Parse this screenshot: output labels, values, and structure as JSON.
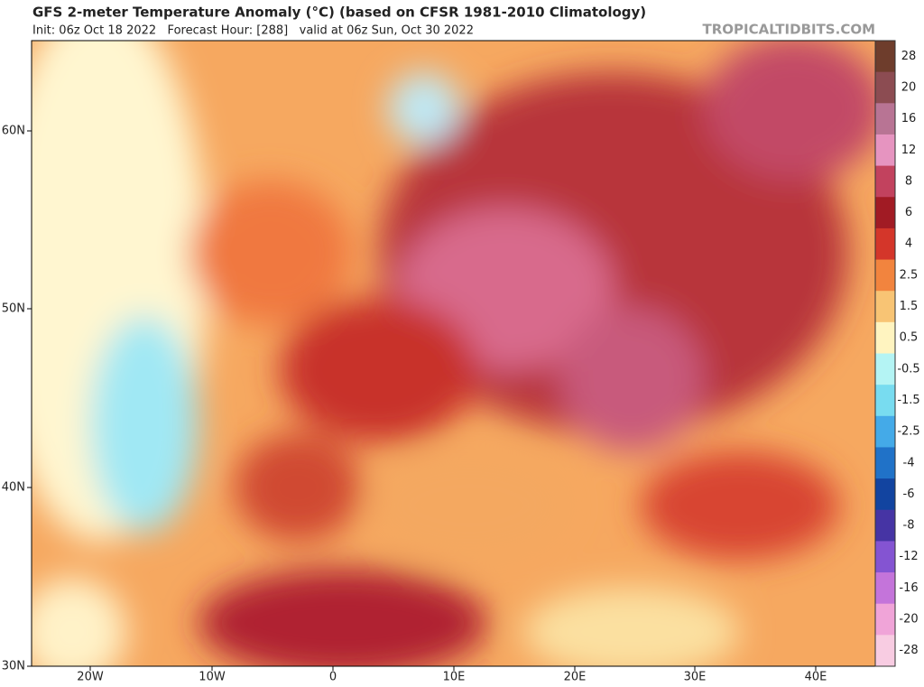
{
  "header": {
    "title": "GFS 2-meter Temperature Anomaly (°C) (based on CFSR 1981-2010 Climatology)",
    "subtitle": "Init: 06z Oct 18 2022   Forecast Hour: [288]   valid at 06z Sun, Oct 30 2022",
    "site": "TROPICALTIDBITS.COM"
  },
  "map": {
    "lat_labels": [
      "60N",
      "50N",
      "40N",
      "30N"
    ],
    "lon_labels": [
      "20W",
      "10W",
      "0",
      "10E",
      "20E",
      "30E",
      "40E"
    ]
  },
  "colorbar": {
    "labels": [
      "28",
      "20",
      "16",
      "12",
      "8",
      "6",
      "4",
      "2.5",
      "1.5",
      "0.5",
      "-0.5",
      "-1.5",
      "-2.5",
      "-4",
      "-6",
      "-8",
      "-12",
      "-16",
      "-20",
      "-28"
    ],
    "colors": [
      "#6e3d2c",
      "#8c4c52",
      "#b87494",
      "#e694c0",
      "#c2425e",
      "#a11b24",
      "#d4362a",
      "#f2843e",
      "#f8c474",
      "#fff4c0",
      "#b4f4f4",
      "#78dcf0",
      "#44aae8",
      "#2072c8",
      "#1244a0",
      "#4634a4",
      "#8454d2",
      "#c474da",
      "#f0a4d8",
      "#f8cce2"
    ]
  }
}
